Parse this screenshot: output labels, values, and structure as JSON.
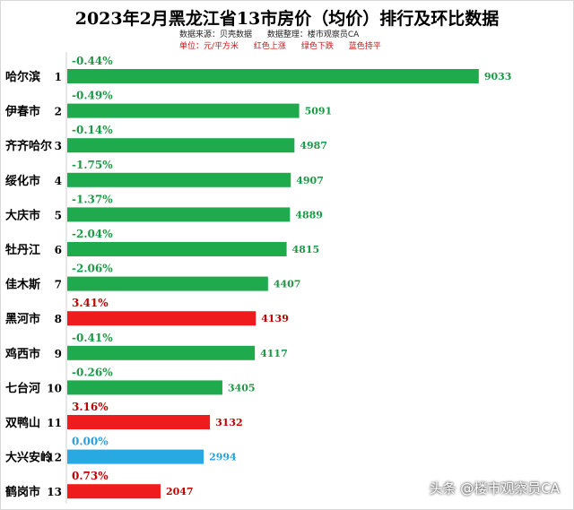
{
  "title": "2023年2月黑龙江省13市房价（均价）排行及环比数据",
  "subtitle": {
    "source": "数据来源：贝壳数据",
    "compiler": "数据整理：楼市观察员CA"
  },
  "legend_line": {
    "unit": "单位：元/平方米",
    "red": "红色上涨",
    "green": "绿色下跌",
    "blue": "蓝色持平"
  },
  "watermark": "头条 @楼市观察员CA",
  "colors": {
    "up": "#ee1c1c",
    "down": "#1faa4d",
    "flat": "#29a9e1",
    "up_text": "#c00000",
    "down_text": "#1a9a45",
    "flat_text": "#2a9fd8"
  },
  "chart_data": {
    "type": "bar",
    "orientation": "horizontal",
    "title": "2023年2月黑龙江省13市房价（均价）排行及环比数据",
    "categories": [
      "哈尔滨",
      "伊春市",
      "齐齐哈尔",
      "绥化市",
      "大庆市",
      "牡丹江",
      "佳木斯",
      "黑河市",
      "鸡西市",
      "七台河",
      "双鸭山",
      "大兴安岭",
      "鹤岗市"
    ],
    "ranks": [
      "1",
      "2",
      "3",
      "4",
      "5",
      "6",
      "7",
      "8",
      "9",
      "10",
      "11",
      "12",
      "13"
    ],
    "values": [
      9033,
      5091,
      4987,
      4907,
      4889,
      4815,
      4407,
      4139,
      4117,
      3405,
      3132,
      2994,
      2047
    ],
    "mom_change": [
      "-0.44%",
      "-0.49%",
      "-0.14%",
      "-1.75%",
      "-1.37%",
      "-2.04%",
      "-2.06%",
      "3.41%",
      "-0.41%",
      "-0.26%",
      "3.16%",
      "0.00%",
      "0.73%"
    ],
    "trend": [
      "down",
      "down",
      "down",
      "down",
      "down",
      "down",
      "down",
      "up",
      "down",
      "down",
      "up",
      "flat",
      "up"
    ],
    "unit": "元/平方米",
    "xlim": [
      0,
      9800
    ],
    "grid": false,
    "legend": "none"
  }
}
